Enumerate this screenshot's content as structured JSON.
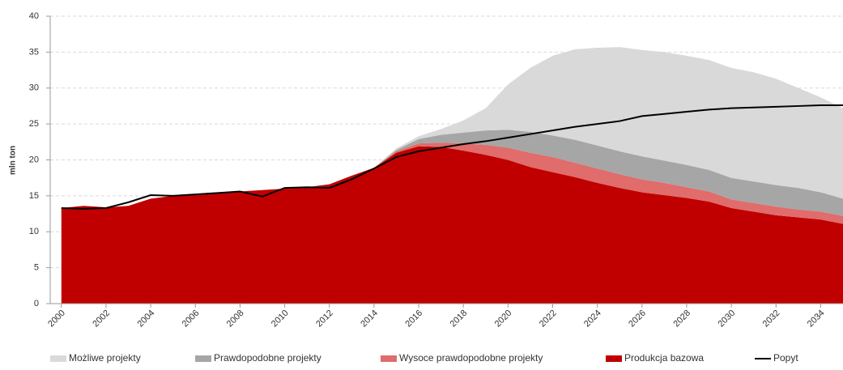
{
  "chart_data": {
    "type": "stacked_area_line",
    "y_axis_label": "mln ton",
    "x": [
      2000,
      2001,
      2002,
      2003,
      2004,
      2005,
      2006,
      2007,
      2008,
      2009,
      2010,
      2011,
      2012,
      2013,
      2014,
      2015,
      2016,
      2017,
      2018,
      2019,
      2020,
      2021,
      2022,
      2023,
      2024,
      2025,
      2026,
      2027,
      2028,
      2029,
      2030,
      2031,
      2032,
      2033,
      2034,
      2035
    ],
    "xlim": [
      1999.5,
      2035
    ],
    "xticks": [
      2000,
      2002,
      2004,
      2006,
      2008,
      2010,
      2012,
      2014,
      2016,
      2018,
      2020,
      2022,
      2024,
      2026,
      2028,
      2030,
      2032,
      2034
    ],
    "ylim": [
      0,
      40
    ],
    "yticks": [
      0,
      5,
      10,
      15,
      20,
      25,
      30,
      35,
      40
    ],
    "grid": true,
    "legend": "bottom",
    "series": [
      {
        "name": "Produkcja bazowa",
        "color": "#c00000",
        "kind": "area",
        "values": [
          13.3,
          13.6,
          13.4,
          13.6,
          14.6,
          15.0,
          15.2,
          15.4,
          15.6,
          15.8,
          16.0,
          16.2,
          16.6,
          17.8,
          18.9,
          21.0,
          21.9,
          21.8,
          21.3,
          20.7,
          20.0,
          19.0,
          18.3,
          17.6,
          16.8,
          16.1,
          15.5,
          15.1,
          14.7,
          14.2,
          13.3,
          12.8,
          12.3,
          12.0,
          11.7,
          11.1
        ]
      },
      {
        "name": "Wysoce prawdopodobne projekty",
        "color": "#e06c6c",
        "kind": "area",
        "values": [
          0,
          0,
          0,
          0,
          0,
          0,
          0,
          0,
          0,
          0,
          0,
          0,
          0,
          0,
          0,
          0.2,
          0.4,
          0.6,
          1.0,
          1.4,
          1.7,
          2.0,
          2.1,
          2.0,
          2.0,
          1.9,
          1.8,
          1.7,
          1.5,
          1.4,
          1.2,
          1.2,
          1.2,
          1.1,
          1.1,
          1.1
        ]
      },
      {
        "name": "Prawdopodobne projekty",
        "color": "#a6a6a6",
        "kind": "area",
        "values": [
          0,
          0,
          0,
          0,
          0,
          0,
          0,
          0,
          0,
          0,
          0,
          0,
          0,
          0,
          0,
          0.2,
          0.6,
          1.1,
          1.5,
          2.0,
          2.5,
          2.9,
          3.0,
          3.2,
          3.2,
          3.2,
          3.2,
          3.1,
          3.1,
          3.0,
          3.0,
          3.0,
          3.0,
          3.0,
          2.7,
          2.4
        ]
      },
      {
        "name": "Możliwe projekty",
        "color": "#d9d9d9",
        "kind": "area",
        "values": [
          0,
          0,
          0,
          0,
          0,
          0,
          0,
          0,
          0,
          0,
          0,
          0,
          0,
          0,
          0,
          0.2,
          0.4,
          0.8,
          1.7,
          3.1,
          6.3,
          8.9,
          11.1,
          12.6,
          13.6,
          14.5,
          14.8,
          15.1,
          15.2,
          15.3,
          15.3,
          15.2,
          14.8,
          13.9,
          13.2,
          12.6
        ]
      },
      {
        "name": "Popyt",
        "color": "#000000",
        "kind": "line",
        "values": [
          13.3,
          13.2,
          13.3,
          14.1,
          15.1,
          15.0,
          15.2,
          15.4,
          15.6,
          14.9,
          16.1,
          16.2,
          16.1,
          17.3,
          18.8,
          20.4,
          21.2,
          21.7,
          22.2,
          22.6,
          23.1,
          23.6,
          24.1,
          24.6,
          25.0,
          25.4,
          26.1,
          26.4,
          26.7,
          27.0,
          27.2,
          27.3,
          27.4,
          27.5,
          27.6,
          27.6
        ]
      }
    ],
    "legend_order": [
      3,
      2,
      1,
      0,
      4
    ]
  }
}
